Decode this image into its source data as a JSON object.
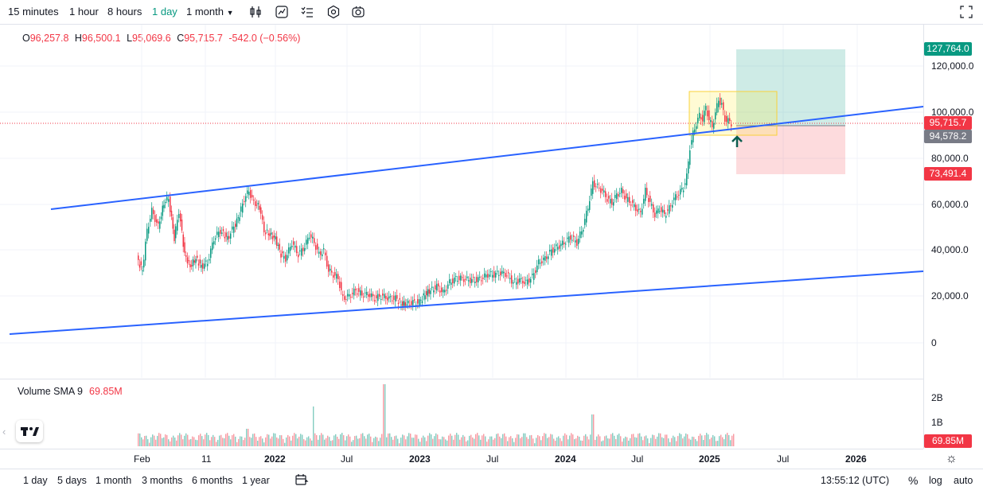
{
  "toolbar": {
    "timeframes": [
      "15 minutes",
      "1 hour",
      "8 hours",
      "1 day",
      "1 month"
    ],
    "active": "1 day",
    "icons": [
      "candles-icon",
      "indicators-icon",
      "alerts-icon",
      "settings-icon",
      "camera-icon",
      "fullscreen-icon"
    ]
  },
  "ohlc": {
    "o_label": "O",
    "o": "96,257.8",
    "h_label": "H",
    "h": "96,500.1",
    "l_label": "L",
    "l": "95,069.6",
    "c_label": "C",
    "c": "95,715.7",
    "change": "-542.0 (−0.56%)"
  },
  "volume": {
    "label": "Volume SMA 9",
    "value": "69.85M"
  },
  "price_axis": [
    "120,000.0",
    "100,000.0",
    "80,000.0",
    "60,000.0",
    "40,000.0",
    "20,000.0",
    "0"
  ],
  "volume_axis": [
    "2B",
    "1B"
  ],
  "tags": {
    "target": "127,764.0",
    "current": "95,715.7",
    "entry": "94,578.2",
    "stop": "73,491.4",
    "volume": "69.85M"
  },
  "time_axis": [
    "Feb",
    "11",
    "2022",
    "Jul",
    "2023",
    "Jul",
    "2024",
    "Jul",
    "2025",
    "Jul",
    "2026"
  ],
  "bottom": {
    "ranges": [
      "1 day",
      "5 days",
      "1 month",
      "3 months",
      "6 months",
      "1 year"
    ],
    "time": "13:55:12 (UTC)",
    "percent": "%",
    "log": "log",
    "auto": "auto"
  },
  "colors": {
    "up": "#089981",
    "down": "#f23645",
    "trendline": "#2962ff",
    "active": "#089981"
  }
}
